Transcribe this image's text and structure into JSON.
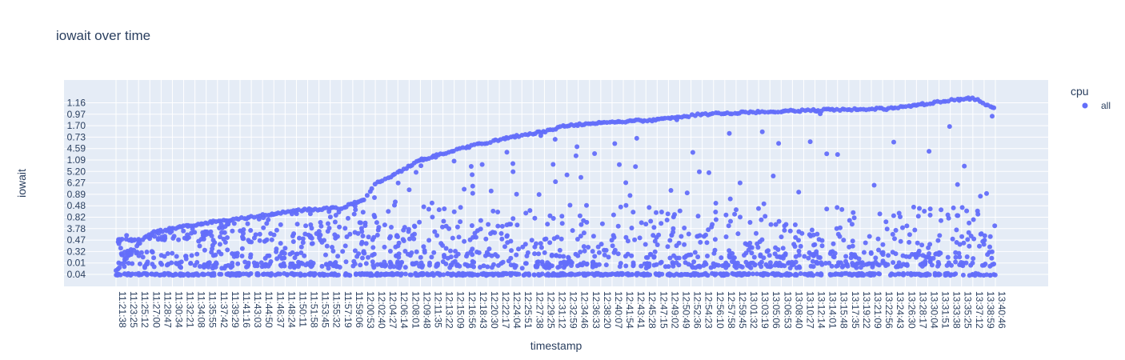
{
  "chart_data": {
    "type": "scatter",
    "title": "iowait over time",
    "xlabel": "timestamp",
    "ylabel": "iowait",
    "legend": {
      "title": "cpu",
      "placement": "right",
      "entries": [
        {
          "name": "all",
          "color": "#636efa"
        }
      ]
    },
    "grid": true,
    "colors": {
      "marker": "#636efa",
      "plot_bg": "#e5ecf6",
      "grid": "#ffffff"
    },
    "x_axis_type": "category",
    "x_range": [
      "11:21:38",
      "13:40:46"
    ],
    "y_axis_type": "category",
    "y_categories_bottom_to_top": [
      "0.04",
      "0.01",
      "0.32",
      "0.47",
      "3.78",
      "0.82",
      "0.48",
      "0.89",
      "6.27",
      "5.20",
      "1.09",
      "4.59",
      "0.73",
      "1.70",
      "0.97",
      "1.16"
    ],
    "x_tick_labels": [
      "11:21:38",
      "11:23:25",
      "11:25:12",
      "11:27:00",
      "11:28:47",
      "11:30:34",
      "11:32:21",
      "11:34:08",
      "11:35:55",
      "11:37:42",
      "11:39:29",
      "11:41:16",
      "11:43:03",
      "11:44:50",
      "11:46:37",
      "11:48:24",
      "11:50:11",
      "11:51:58",
      "11:53:45",
      "11:55:32",
      "11:57:19",
      "11:59:06",
      "12:00:53",
      "12:02:40",
      "12:04:27",
      "12:06:14",
      "12:08:01",
      "12:09:48",
      "12:11:35",
      "12:13:22",
      "12:15:09",
      "12:16:56",
      "12:18:43",
      "12:20:30",
      "12:22:17",
      "12:24:04",
      "12:25:51",
      "12:27:38",
      "12:29:25",
      "12:31:12",
      "12:32:59",
      "12:34:46",
      "12:36:33",
      "12:38:20",
      "12:40:07",
      "12:41:54",
      "12:43:41",
      "12:45:28",
      "12:47:15",
      "12:49:02",
      "12:50:49",
      "12:52:36",
      "12:54:23",
      "12:56:10",
      "12:57:58",
      "12:59:45",
      "13:01:32",
      "13:03:19",
      "13:05:06",
      "13:06:53",
      "13:08:40",
      "13:10:27",
      "13:12:14",
      "13:14:01",
      "13:15:48",
      "13:17:35",
      "13:19:22",
      "13:21:09",
      "13:22:56",
      "13:24:43",
      "13:26:30",
      "13:28:17",
      "13:30:04",
      "13:31:51",
      "13:33:38",
      "13:35:25",
      "13:37:12",
      "13:38:59",
      "13:40:46"
    ],
    "upper_envelope_points": [
      {
        "x": "11:21:38",
        "y_level": 0.3
      },
      {
        "x": "11:23:25",
        "y_level": 1.5
      },
      {
        "x": "11:25:12",
        "y_level": 2.7
      },
      {
        "x": "11:27:00",
        "y_level": 3.6
      },
      {
        "x": "11:30:34",
        "y_level": 4.0
      },
      {
        "x": "11:35:55",
        "y_level": 4.5
      },
      {
        "x": "11:43:03",
        "y_level": 5.0
      },
      {
        "x": "11:50:11",
        "y_level": 5.6
      },
      {
        "x": "11:57:19",
        "y_level": 5.8
      },
      {
        "x": "12:00:53",
        "y_level": 6.6
      },
      {
        "x": "12:02:40",
        "y_level": 7.9
      },
      {
        "x": "12:06:14",
        "y_level": 8.9
      },
      {
        "x": "12:09:48",
        "y_level": 10.0
      },
      {
        "x": "12:16:56",
        "y_level": 11.1
      },
      {
        "x": "12:24:04",
        "y_level": 12.0
      },
      {
        "x": "12:29:25",
        "y_level": 12.5
      },
      {
        "x": "12:32:59",
        "y_level": 13.0
      },
      {
        "x": "12:38:20",
        "y_level": 13.3
      },
      {
        "x": "12:47:15",
        "y_level": 13.5
      },
      {
        "x": "12:54:23",
        "y_level": 14.0
      },
      {
        "x": "13:03:19",
        "y_level": 14.2
      },
      {
        "x": "13:15:48",
        "y_level": 14.4
      },
      {
        "x": "13:24:43",
        "y_level": 14.5
      },
      {
        "x": "13:28:17",
        "y_level": 14.8
      },
      {
        "x": "13:33:38",
        "y_level": 15.2
      },
      {
        "x": "13:37:12",
        "y_level": 15.4
      },
      {
        "x": "13:40:46",
        "y_level": 14.5
      }
    ]
  }
}
